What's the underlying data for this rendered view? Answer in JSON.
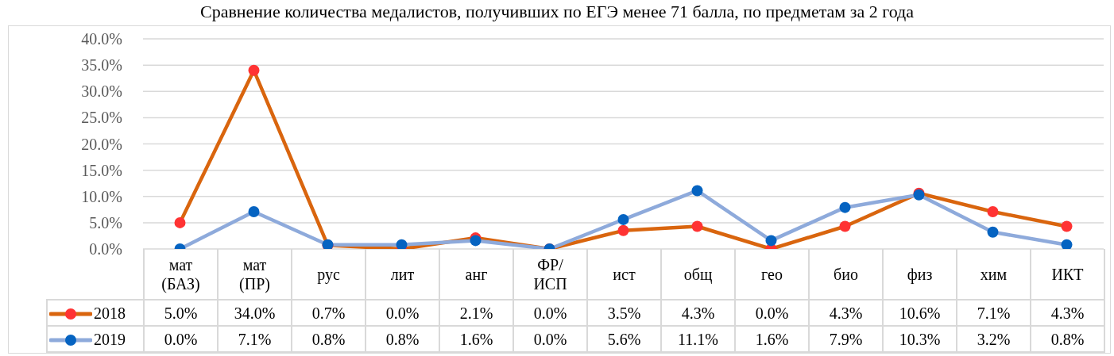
{
  "chart_data": {
    "type": "line",
    "title": "Сравнение количества медалистов, получивших по ЕГЭ менее 71 балла, по предметам за 2 года",
    "categories": [
      "мат (БАЗ)",
      "мат (ПР)",
      "рус",
      "лит",
      "анг",
      "ФР/ИСП",
      "ист",
      "общ",
      "гео",
      "био",
      "физ",
      "хим",
      "ИКТ"
    ],
    "series": [
      {
        "name": "2018",
        "color": "#d9650e",
        "colors": [
          "#ff3333",
          "#ff3333",
          "#ff3333",
          "#ff3333",
          "#ff3333",
          "#ff3333",
          "#ff3333",
          "#ff3333",
          "#ff3333",
          "#ff3333",
          "#ff3333",
          "#ff3333",
          "#ff3333"
        ],
        "values": [
          5.0,
          34.0,
          0.7,
          0.0,
          2.1,
          0.0,
          3.5,
          4.3,
          0.0,
          4.3,
          10.6,
          7.1,
          4.3
        ],
        "value_labels": [
          "5.0%",
          "34.0%",
          "0.7%",
          "0.0%",
          "2.1%",
          "0.0%",
          "3.5%",
          "4.3%",
          "0.0%",
          "4.3%",
          "10.6%",
          "7.1%",
          "4.3%"
        ]
      },
      {
        "name": "2019",
        "color": "#8eaadb",
        "colors": [
          "#0563c1",
          "#0563c1",
          "#0563c1",
          "#0563c1",
          "#0563c1",
          "#0563c1",
          "#0563c1",
          "#0563c1",
          "#0563c1",
          "#0563c1",
          "#0563c1",
          "#0563c1",
          "#0563c1"
        ],
        "values": [
          0.0,
          7.1,
          0.8,
          0.8,
          1.6,
          0.0,
          5.6,
          11.1,
          1.6,
          7.9,
          10.3,
          3.2,
          0.8
        ],
        "value_labels": [
          "0.0%",
          "7.1%",
          "0.8%",
          "0.8%",
          "1.6%",
          "0.0%",
          "5.6%",
          "11.1%",
          "1.6%",
          "7.9%",
          "10.3%",
          "3.2%",
          "0.8%"
        ]
      }
    ],
    "ylim": [
      0,
      40
    ],
    "yticks": [
      {
        "value": 0,
        "label": "0.0%"
      },
      {
        "value": 5,
        "label": "5.0%"
      },
      {
        "value": 10,
        "label": "10.0%"
      },
      {
        "value": 15,
        "label": "15.0%"
      },
      {
        "value": 20,
        "label": "20.0%"
      },
      {
        "value": 25,
        "label": "25.0%"
      },
      {
        "value": 30,
        "label": "30.0%"
      },
      {
        "value": 35,
        "label": "35.0%"
      },
      {
        "value": 40,
        "label": "40.0%"
      }
    ],
    "grid": "y",
    "legend": "bottom left",
    "marker": "circle",
    "line_style": "solid"
  }
}
